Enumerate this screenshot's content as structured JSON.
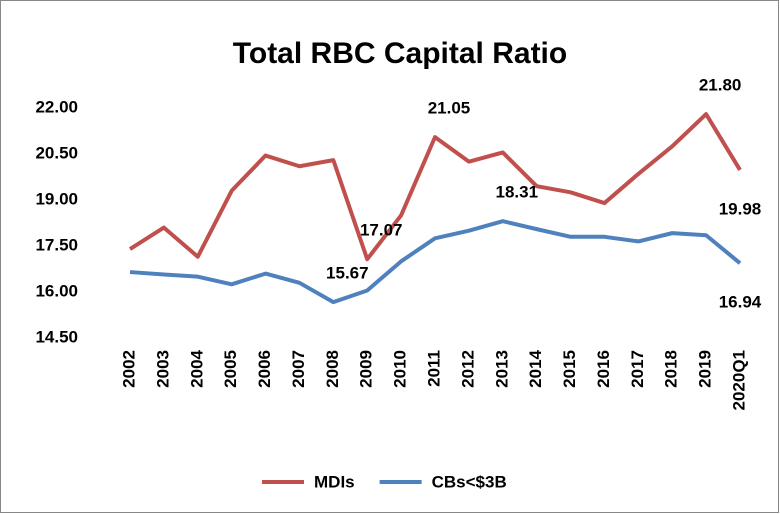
{
  "chart_data": {
    "type": "line",
    "title": "Total RBC Capital Ratio",
    "categories": [
      "2002",
      "2003",
      "2004",
      "2005",
      "2006",
      "2007",
      "2008",
      "2009",
      "2010",
      "2011",
      "2012",
      "2013",
      "2014",
      "2015",
      "2016",
      "2017",
      "2018",
      "2019",
      "2020Q1"
    ],
    "series": [
      {
        "name": "MDIs",
        "color": "#c0504d",
        "values": [
          17.4,
          18.1,
          17.15,
          19.3,
          20.45,
          20.1,
          20.3,
          17.07,
          18.5,
          21.05,
          20.25,
          20.55,
          19.45,
          19.25,
          18.9,
          19.85,
          20.75,
          21.8,
          19.98
        ],
        "value_labels": [
          null,
          null,
          null,
          null,
          null,
          null,
          null,
          "17.07",
          null,
          "21.05",
          null,
          null,
          null,
          null,
          null,
          null,
          null,
          "21.80",
          "19.98"
        ]
      },
      {
        "name": "CBs<$3B",
        "color": "#4f81bd",
        "values": [
          16.65,
          16.57,
          16.5,
          16.25,
          16.6,
          16.3,
          15.67,
          16.05,
          17.0,
          17.75,
          18.0,
          18.31,
          18.05,
          17.8,
          17.8,
          17.65,
          17.92,
          17.85,
          16.94
        ],
        "value_labels": [
          null,
          null,
          null,
          null,
          null,
          null,
          "15.67",
          null,
          null,
          null,
          null,
          "18.31",
          null,
          null,
          null,
          null,
          null,
          null,
          "16.94"
        ]
      }
    ],
    "ylim": [
      14.5,
      22.0
    ],
    "yticks": [
      {
        "value": 14.5,
        "label": "14.50"
      },
      {
        "value": 16,
        "label": "16.00"
      },
      {
        "value": 17.5,
        "label": "17.50"
      },
      {
        "value": 19,
        "label": "19.00"
      },
      {
        "value": 20.5,
        "label": "20.50"
      },
      {
        "value": 22,
        "label": "22.00"
      }
    ],
    "grid": false,
    "legend": "bottom"
  }
}
